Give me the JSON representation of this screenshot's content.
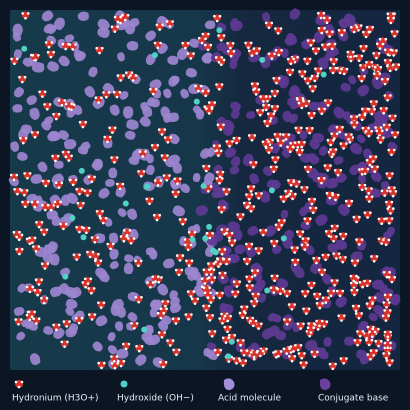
{
  "legend": [
    {
      "label": "Hydronium (H3O+)"
    },
    {
      "label": "Hydroxide (OH−)"
    },
    {
      "label": "Acid molecule"
    },
    {
      "label": "Conjugate base"
    }
  ]
}
